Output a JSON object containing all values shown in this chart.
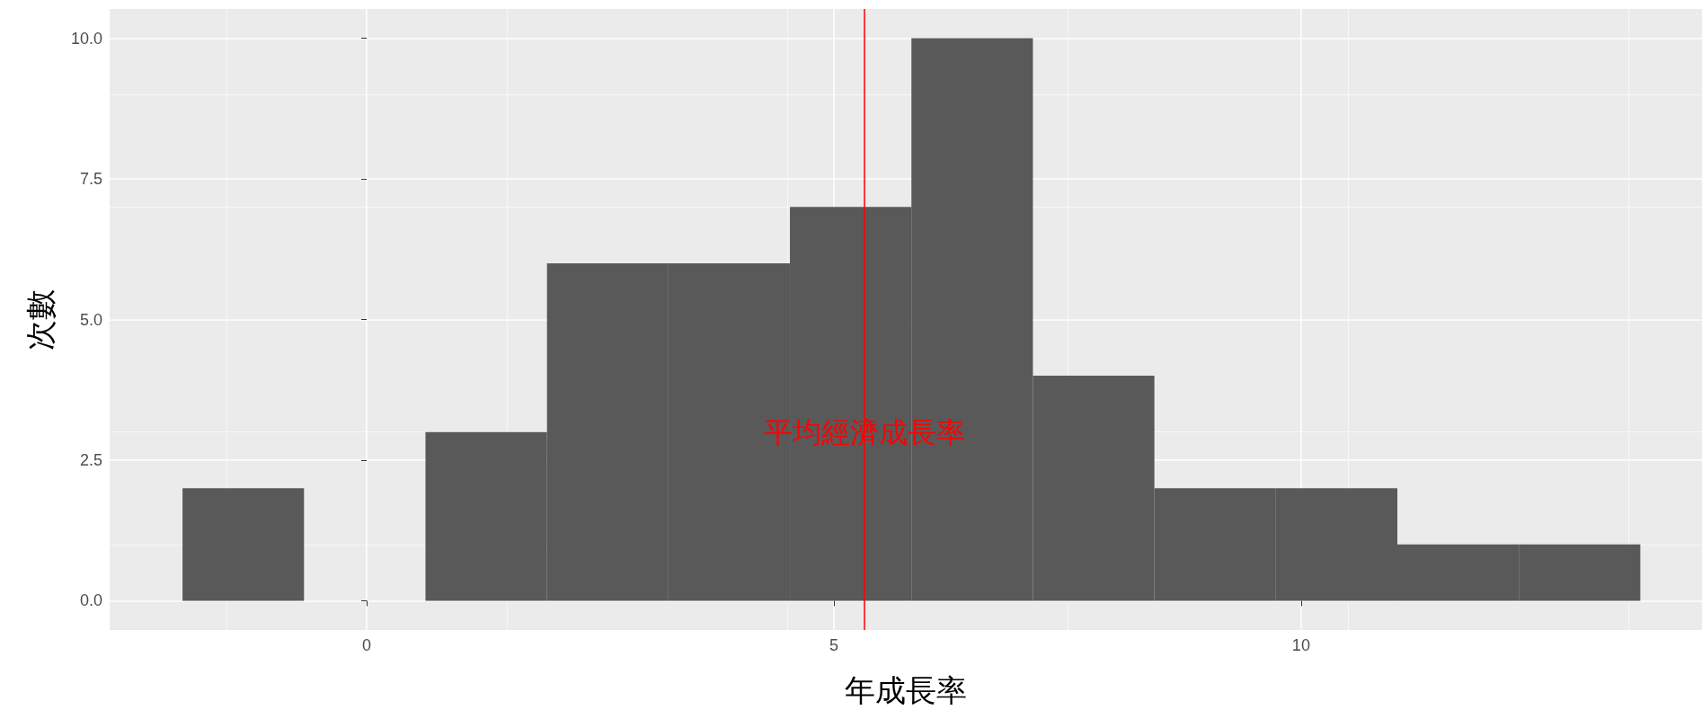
{
  "chart_data": {
    "type": "histogram",
    "xlabel": "年成長率",
    "ylabel": "次數",
    "bins": [
      -1.97,
      -0.67,
      0.63,
      1.93,
      3.23,
      4.53,
      5.83,
      7.13,
      8.43,
      9.73,
      11.03,
      12.33,
      13.63
    ],
    "values": [
      2,
      0,
      3,
      6,
      6,
      7,
      10,
      4,
      2,
      2,
      1,
      1
    ],
    "color": "#595959",
    "xlim": [
      -2.75,
      14.29
    ],
    "xticks": [
      0,
      5,
      10
    ],
    "ylim": [
      -0.52,
      10.52
    ],
    "yticks": [
      {
        "value": 0,
        "label": "0.0"
      },
      {
        "value": 2.5,
        "label": "2.5"
      },
      {
        "value": 5,
        "label": "5.0"
      },
      {
        "value": 7.5,
        "label": "7.5"
      },
      {
        "value": 10,
        "label": "10.0"
      }
    ],
    "grid": true,
    "ref_lines": [
      {
        "axis": "x",
        "value": 5.33,
        "color": "#ff0000"
      }
    ],
    "annotations": [
      {
        "text": "平均經濟成長率",
        "x": 5.33,
        "y": 3
      }
    ]
  }
}
